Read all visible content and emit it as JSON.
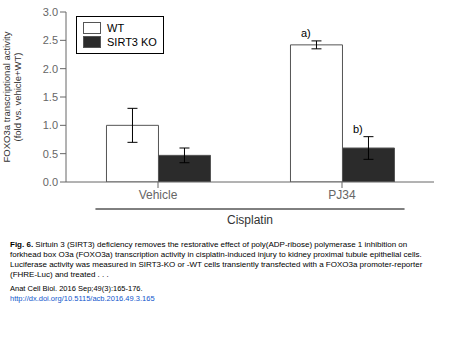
{
  "chart_data": {
    "type": "bar",
    "categories": [
      "Vehicle",
      "PJ34"
    ],
    "series": [
      {
        "name": "WT",
        "color": "#ffffff",
        "values": [
          1.0,
          2.42
        ],
        "errors": [
          0.3,
          0.07
        ]
      },
      {
        "name": "SIRT3 KO",
        "color": "#2b2b2b",
        "values": [
          0.47,
          0.6
        ],
        "errors": [
          0.13,
          0.2
        ]
      }
    ],
    "ylabel": "FOXO3a transcriptional activity\n(fold vs. vehicle+WT)",
    "xlabel": "Cisplatin",
    "ylim": [
      0.0,
      3.0
    ],
    "yticks": [
      {
        "value": 0.0,
        "label": "0.0"
      },
      {
        "value": 0.5,
        "label": "0.5"
      },
      {
        "value": 1.0,
        "label": "1.0"
      },
      {
        "value": 1.5,
        "label": "1.5"
      },
      {
        "value": 2.0,
        "label": "2.0"
      },
      {
        "value": 2.5,
        "label": "2.5"
      },
      {
        "value": 3.0,
        "label": "3.0"
      }
    ],
    "grid": false,
    "legend": "upper left",
    "annotations": [
      {
        "text": "a)",
        "category": "PJ34",
        "series": "WT"
      },
      {
        "text": "b)",
        "category": "PJ34",
        "series": "SIRT3 KO"
      }
    ],
    "caption": [
      {
        "text": "Fig. 6.",
        "bold": true
      },
      {
        "text": " Sirtuin 3 (SIRT3) deficiency removes the restorative effect of poly(ADP-ribose) polymerase 1 inhibition on forkhead box O3a (FOXO3a) transcription activity in cisplatin-induced injury to kidney proximal tubule epithelial cells. Luciferase activity was measured in SIRT3-KO or -WT cells transiently transfected with a FOXO3a promoter-reporter (FHRE-Luc) and treated . . ."
      }
    ],
    "footnotes": [
      {
        "text": "Anat Cell Biol. 2016 Sep;49(3):165-176.",
        "color": "#000000"
      },
      {
        "text": "http://dx.doi.org/10.5115/acb.2016.49.3.165",
        "color": "#1155cc"
      }
    ]
  }
}
